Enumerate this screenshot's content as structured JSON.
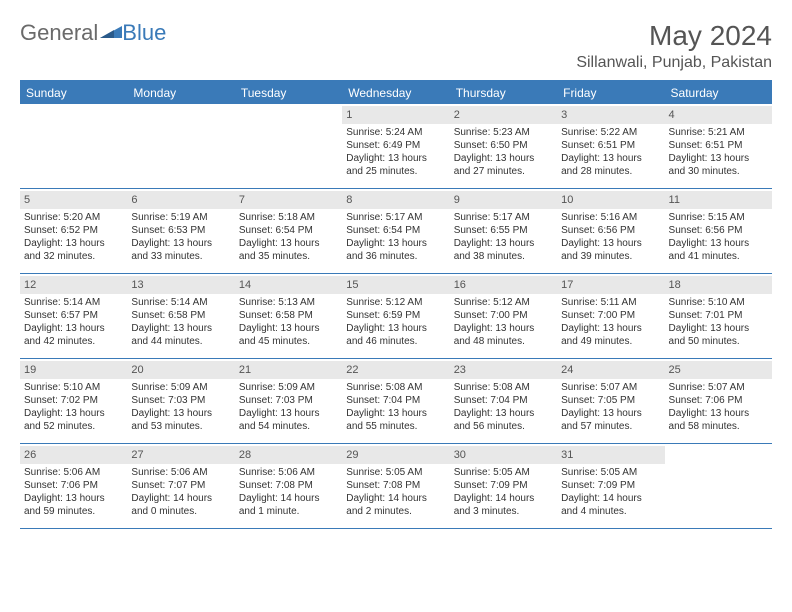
{
  "brand": {
    "part1": "General",
    "part2": "Blue"
  },
  "title": "May 2024",
  "location": "Sillanwali, Punjab, Pakistan",
  "colors": {
    "accent": "#3a7ab8",
    "daynum_bg": "#e8e8e8",
    "text": "#333333",
    "header_text": "#555555"
  },
  "weekdays": [
    "Sunday",
    "Monday",
    "Tuesday",
    "Wednesday",
    "Thursday",
    "Friday",
    "Saturday"
  ],
  "weeks": [
    [
      {
        "empty": true
      },
      {
        "empty": true
      },
      {
        "empty": true
      },
      {
        "n": "1",
        "sr": "5:24 AM",
        "ss": "6:49 PM",
        "dl": "13 hours and 25 minutes."
      },
      {
        "n": "2",
        "sr": "5:23 AM",
        "ss": "6:50 PM",
        "dl": "13 hours and 27 minutes."
      },
      {
        "n": "3",
        "sr": "5:22 AM",
        "ss": "6:51 PM",
        "dl": "13 hours and 28 minutes."
      },
      {
        "n": "4",
        "sr": "5:21 AM",
        "ss": "6:51 PM",
        "dl": "13 hours and 30 minutes."
      }
    ],
    [
      {
        "n": "5",
        "sr": "5:20 AM",
        "ss": "6:52 PM",
        "dl": "13 hours and 32 minutes."
      },
      {
        "n": "6",
        "sr": "5:19 AM",
        "ss": "6:53 PM",
        "dl": "13 hours and 33 minutes."
      },
      {
        "n": "7",
        "sr": "5:18 AM",
        "ss": "6:54 PM",
        "dl": "13 hours and 35 minutes."
      },
      {
        "n": "8",
        "sr": "5:17 AM",
        "ss": "6:54 PM",
        "dl": "13 hours and 36 minutes."
      },
      {
        "n": "9",
        "sr": "5:17 AM",
        "ss": "6:55 PM",
        "dl": "13 hours and 38 minutes."
      },
      {
        "n": "10",
        "sr": "5:16 AM",
        "ss": "6:56 PM",
        "dl": "13 hours and 39 minutes."
      },
      {
        "n": "11",
        "sr": "5:15 AM",
        "ss": "6:56 PM",
        "dl": "13 hours and 41 minutes."
      }
    ],
    [
      {
        "n": "12",
        "sr": "5:14 AM",
        "ss": "6:57 PM",
        "dl": "13 hours and 42 minutes."
      },
      {
        "n": "13",
        "sr": "5:14 AM",
        "ss": "6:58 PM",
        "dl": "13 hours and 44 minutes."
      },
      {
        "n": "14",
        "sr": "5:13 AM",
        "ss": "6:58 PM",
        "dl": "13 hours and 45 minutes."
      },
      {
        "n": "15",
        "sr": "5:12 AM",
        "ss": "6:59 PM",
        "dl": "13 hours and 46 minutes."
      },
      {
        "n": "16",
        "sr": "5:12 AM",
        "ss": "7:00 PM",
        "dl": "13 hours and 48 minutes."
      },
      {
        "n": "17",
        "sr": "5:11 AM",
        "ss": "7:00 PM",
        "dl": "13 hours and 49 minutes."
      },
      {
        "n": "18",
        "sr": "5:10 AM",
        "ss": "7:01 PM",
        "dl": "13 hours and 50 minutes."
      }
    ],
    [
      {
        "n": "19",
        "sr": "5:10 AM",
        "ss": "7:02 PM",
        "dl": "13 hours and 52 minutes."
      },
      {
        "n": "20",
        "sr": "5:09 AM",
        "ss": "7:03 PM",
        "dl": "13 hours and 53 minutes."
      },
      {
        "n": "21",
        "sr": "5:09 AM",
        "ss": "7:03 PM",
        "dl": "13 hours and 54 minutes."
      },
      {
        "n": "22",
        "sr": "5:08 AM",
        "ss": "7:04 PM",
        "dl": "13 hours and 55 minutes."
      },
      {
        "n": "23",
        "sr": "5:08 AM",
        "ss": "7:04 PM",
        "dl": "13 hours and 56 minutes."
      },
      {
        "n": "24",
        "sr": "5:07 AM",
        "ss": "7:05 PM",
        "dl": "13 hours and 57 minutes."
      },
      {
        "n": "25",
        "sr": "5:07 AM",
        "ss": "7:06 PM",
        "dl": "13 hours and 58 minutes."
      }
    ],
    [
      {
        "n": "26",
        "sr": "5:06 AM",
        "ss": "7:06 PM",
        "dl": "13 hours and 59 minutes."
      },
      {
        "n": "27",
        "sr": "5:06 AM",
        "ss": "7:07 PM",
        "dl": "14 hours and 0 minutes."
      },
      {
        "n": "28",
        "sr": "5:06 AM",
        "ss": "7:08 PM",
        "dl": "14 hours and 1 minute."
      },
      {
        "n": "29",
        "sr": "5:05 AM",
        "ss": "7:08 PM",
        "dl": "14 hours and 2 minutes."
      },
      {
        "n": "30",
        "sr": "5:05 AM",
        "ss": "7:09 PM",
        "dl": "14 hours and 3 minutes."
      },
      {
        "n": "31",
        "sr": "5:05 AM",
        "ss": "7:09 PM",
        "dl": "14 hours and 4 minutes."
      },
      {
        "empty": true
      }
    ]
  ],
  "labels": {
    "sunrise": "Sunrise:",
    "sunset": "Sunset:",
    "daylight": "Daylight:"
  }
}
